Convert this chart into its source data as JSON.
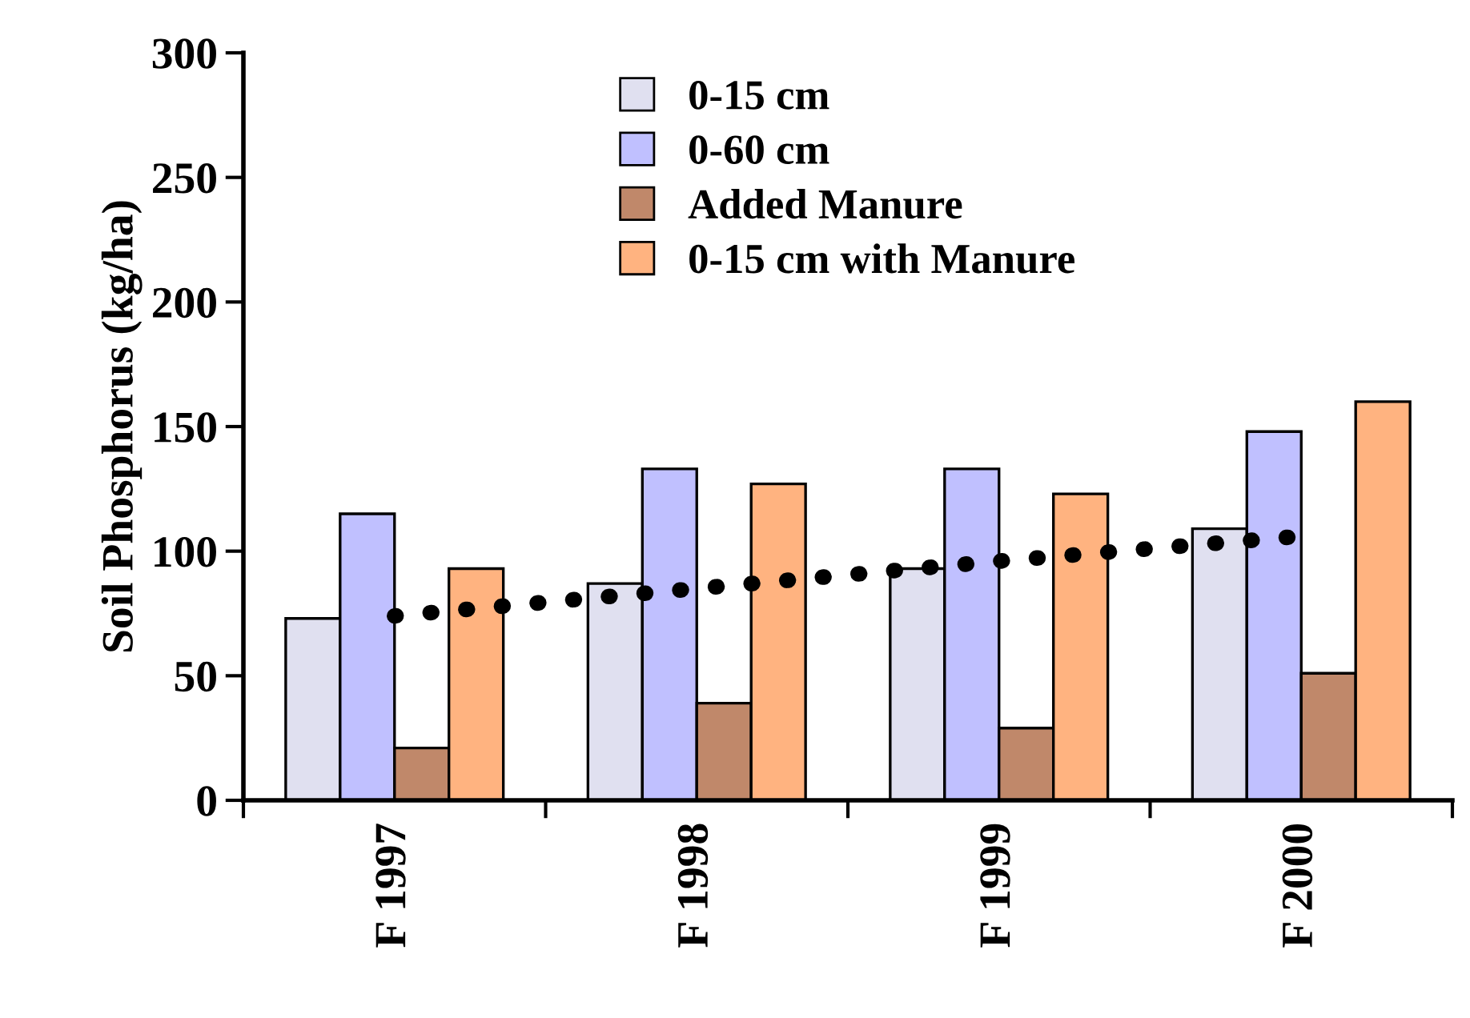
{
  "chart_data": {
    "type": "bar",
    "ylabel": "Soil Phosphorus (kg/ha)",
    "categories": [
      "F 1997",
      "F 1998",
      "F 1999",
      "F 2000"
    ],
    "series": [
      {
        "name": "0-15 cm",
        "color": "#e0e0f0",
        "values": [
          73,
          87,
          93,
          109
        ]
      },
      {
        "name": "0-60 cm",
        "color": "#c0c0ff",
        "values": [
          115,
          133,
          133,
          148
        ]
      },
      {
        "name": "Added Manure",
        "color": "#c0886a",
        "values": [
          21,
          39,
          29,
          51
        ]
      },
      {
        "name": "0-15 cm with Manure",
        "color": "#ffb380",
        "values": [
          93,
          127,
          123,
          160
        ]
      },
      {
        "type": "line",
        "color": "#000000",
        "values": [
          74,
          85,
          96,
          106
        ],
        "line_style": "dotted"
      }
    ],
    "ylim": [
      0,
      300
    ],
    "yticks": [
      0,
      50,
      100,
      150,
      200,
      250,
      300
    ],
    "grid": false,
    "legend": "top"
  }
}
